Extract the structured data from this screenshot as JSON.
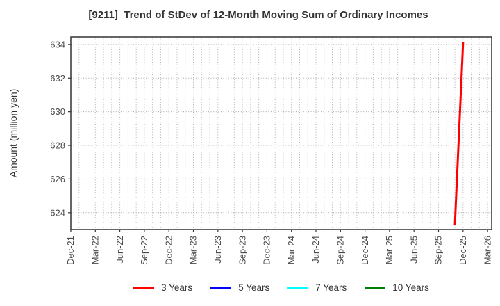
{
  "chart_data": {
    "type": "line",
    "title": "[9211]  Trend of StDev of 12-Month Moving Sum of Ordinary Incomes",
    "xlabel": "",
    "ylabel": "Amount (million yen)",
    "x_tick_labels": [
      "Dec-21",
      "Mar-22",
      "Jun-22",
      "Sep-22",
      "Dec-22",
      "Mar-23",
      "Jun-23",
      "Sep-23",
      "Dec-23",
      "Mar-24",
      "Jun-24",
      "Sep-24",
      "Dec-24",
      "Mar-25",
      "Jun-25",
      "Sep-25",
      "Dec-25",
      "Mar-26"
    ],
    "x_tick_interval_months": 3,
    "xlim_month_index": [
      0,
      51.5
    ],
    "y_ticks": [
      624,
      626,
      628,
      630,
      632,
      634
    ],
    "ylim": [
      623.0,
      634.45
    ],
    "grid": {
      "show": true,
      "style": "dotted",
      "vertical_every_month": true,
      "horizontal_at_major_ticks": true
    },
    "legend_position": "bottom-center",
    "series": [
      {
        "name": "3 Years",
        "color": "#ff0000",
        "points": [
          {
            "x": "Nov-25",
            "month_index": 47,
            "y": 623.3
          },
          {
            "x": "Dec-25",
            "month_index": 48,
            "y": 634.1
          }
        ]
      },
      {
        "name": "5 Years",
        "color": "#0000ff",
        "points": []
      },
      {
        "name": "7 Years",
        "color": "#00ffff",
        "points": []
      },
      {
        "name": "10 Years",
        "color": "#008000",
        "points": []
      }
    ],
    "colors": {
      "grid": "#ababab",
      "spine": "#333333",
      "tick_label": "#4a4a4a",
      "title": "#333333"
    }
  }
}
